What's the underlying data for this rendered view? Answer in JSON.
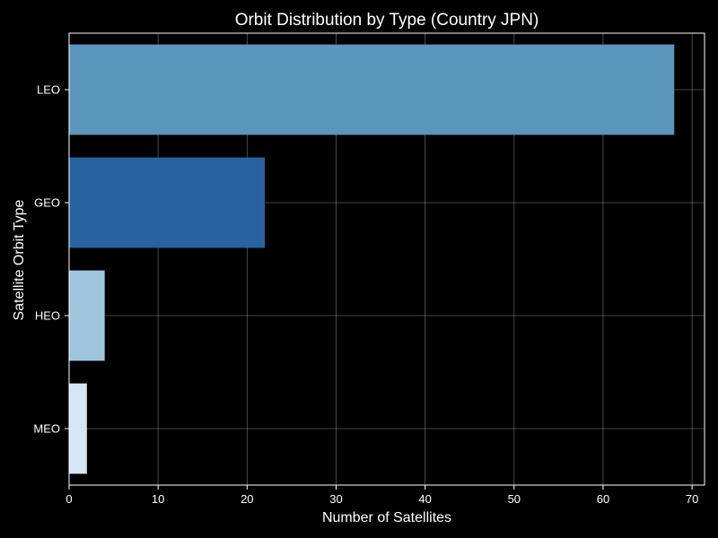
{
  "chart_data": {
    "type": "bar",
    "orientation": "horizontal",
    "title": "Orbit Distribution by Type (Country JPN)",
    "xlabel": "Number of Satellites",
    "ylabel": "Satellite Orbit Type",
    "categories": [
      "LEO",
      "GEO",
      "HEO",
      "MEO"
    ],
    "values": [
      68,
      22,
      4,
      2
    ],
    "colors": [
      "#5b96bc",
      "#2862a0",
      "#a0c6de",
      "#d6e6f4"
    ],
    "xlim": [
      0,
      71.4
    ],
    "xticks": [
      0,
      10,
      20,
      30,
      40,
      50,
      60,
      70
    ],
    "xtick_labels": [
      "0",
      "10",
      "20",
      "30",
      "40",
      "50",
      "60",
      "70"
    ],
    "grid": true,
    "background": "#000000"
  }
}
